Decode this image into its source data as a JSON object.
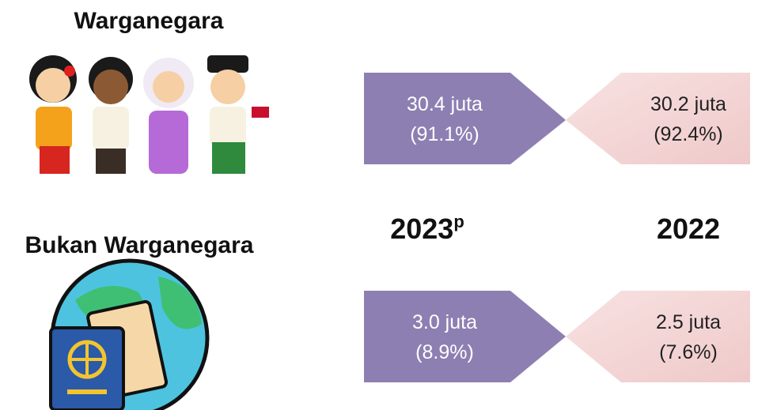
{
  "groups": [
    {
      "title": "Warganegara",
      "values": [
        {
          "amount": "30.4 juta",
          "share": "(91.1%)"
        },
        {
          "amount": "30.2 juta",
          "share": "(92.4%)"
        }
      ]
    },
    {
      "title": "Bukan Warganegara",
      "values": [
        {
          "amount": "3.0 juta",
          "share": "(8.9%)"
        },
        {
          "amount": "2.5 juta",
          "share": "(7.6%)"
        }
      ]
    }
  ],
  "years": [
    {
      "year": "2023",
      "note": "p"
    },
    {
      "year": "2022"
    }
  ]
}
